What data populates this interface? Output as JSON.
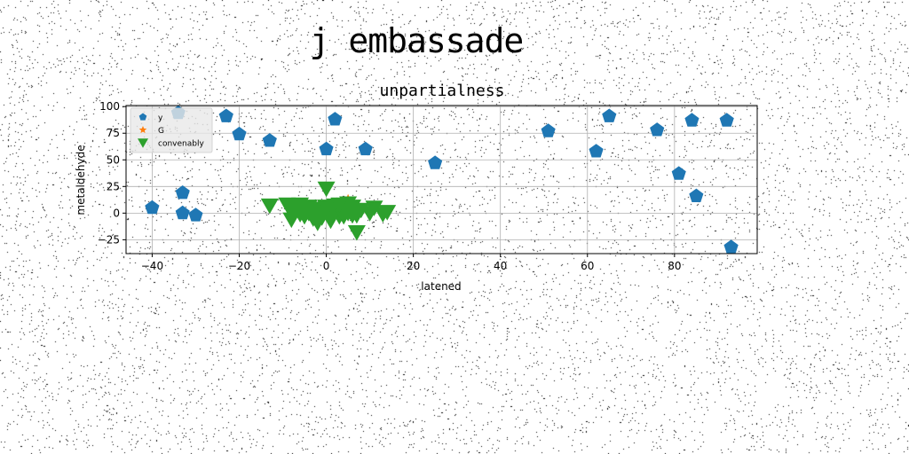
{
  "figure": {
    "title": "j embassade"
  },
  "chart_data": {
    "type": "scatter",
    "title": "unpartialness",
    "xlabel": "latened",
    "ylabel": "metaldehyde",
    "xlim": [
      -46,
      99
    ],
    "ylim": [
      -38,
      101
    ],
    "xticks": [
      -40,
      -20,
      0,
      20,
      40,
      60,
      80
    ],
    "yticks": [
      -25,
      0,
      25,
      50,
      75,
      100
    ],
    "grid": true,
    "legend_position": "upper-left",
    "series": [
      {
        "name": "y",
        "marker": "pentagon",
        "color": "#1f77b4",
        "x": [
          -40,
          -34,
          -33,
          -33,
          -30,
          -23,
          -20,
          -13,
          0,
          2,
          9,
          25,
          51,
          62,
          65,
          76,
          81,
          84,
          85,
          92,
          93
        ],
        "y": [
          5,
          94,
          19,
          0,
          -2,
          91,
          74,
          68,
          60,
          88,
          60,
          47,
          77,
          58,
          91,
          78,
          37,
          87,
          16,
          87,
          -32
        ]
      },
      {
        "name": "G",
        "marker": "star",
        "color": "#ff7f0e",
        "x": [
          5
        ],
        "y": [
          13
        ]
      },
      {
        "name": "convenably",
        "marker": "triangle-down",
        "color": "#2ca02c",
        "x": [
          -13,
          -9,
          -8,
          -7,
          -6,
          -5,
          -4,
          -3,
          -2,
          -1,
          0,
          1,
          2,
          3,
          4,
          5,
          6,
          7,
          8,
          10,
          11,
          13,
          14,
          -8,
          -6,
          -4,
          -2,
          0,
          1,
          3,
          5,
          6,
          -3,
          -1,
          2,
          4,
          7,
          -5,
          0,
          3,
          5
        ],
        "y": [
          7,
          8,
          1,
          5,
          -1,
          2,
          6,
          -5,
          -9,
          4,
          23,
          0,
          7,
          -3,
          5,
          9,
          -2,
          -18,
          3,
          0,
          5,
          -1,
          1,
          -6,
          8,
          0,
          2,
          5,
          -7,
          3,
          0,
          6,
          4,
          -4,
          1,
          -3,
          -2,
          -3,
          6,
          8,
          2
        ]
      }
    ]
  }
}
